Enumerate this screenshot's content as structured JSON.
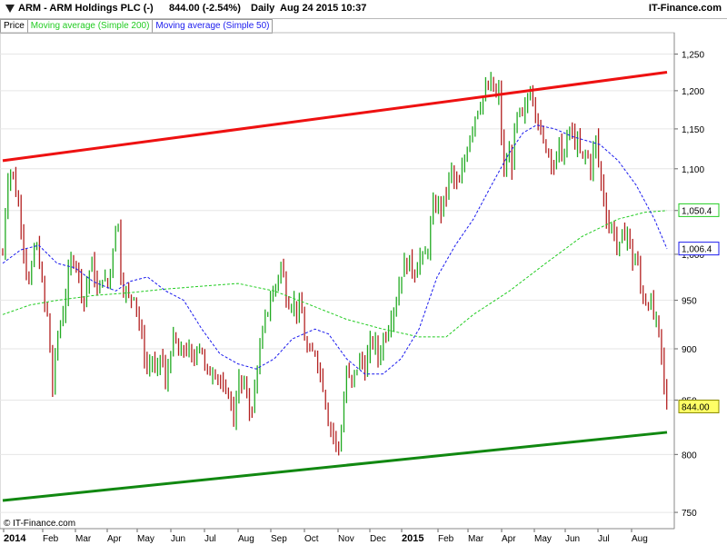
{
  "header": {
    "title": "ARM - ARM Holdings PLC (-)",
    "price_change": "844.00 (-2.54%)",
    "period": "Daily",
    "timestamp": "Aug 24 2015 10:37",
    "brand": "IT-Finance.com"
  },
  "legend": {
    "price": "Price",
    "ma200": "Moving average (Simple 200)",
    "ma50": "Moving average (Simple 50)"
  },
  "copyright": "© IT-Finance.com",
  "colors": {
    "up": "#22aa22",
    "down": "#b32020",
    "ma200": "#22cc22",
    "ma50": "#1a1aee",
    "resistance": "#ee1111",
    "support": "#118811",
    "last_price_bg": "#ffff66"
  },
  "chart_data": {
    "type": "candlestick",
    "y_scale": "log",
    "ylim": [
      738,
      1275
    ],
    "y_ticks": [
      "1,250",
      "1,200",
      "1,150",
      "1,100",
      "1,050",
      "1,000",
      "950",
      "900",
      "850",
      "800",
      "750"
    ],
    "y_tick_values": [
      1250,
      1200,
      1150,
      1100,
      1050,
      1000,
      950,
      900,
      850,
      800,
      750
    ],
    "x_labels": [
      "2014",
      "Feb",
      "Mar",
      "Apr",
      "May",
      "Jun",
      "Jul",
      "Aug",
      "Sep",
      "Oct",
      "Nov",
      "Dec",
      "2015",
      "Feb",
      "Mar",
      "Apr",
      "May",
      "Jun",
      "Jul",
      "Aug"
    ],
    "close_path": [
      [
        0,
        1000
      ],
      [
        5,
        1090
      ],
      [
        10,
        1100
      ],
      [
        15,
        1070
      ],
      [
        20,
        1040
      ],
      [
        25,
        990
      ],
      [
        30,
        960
      ],
      [
        35,
        1010
      ],
      [
        40,
        1000
      ],
      [
        45,
        950
      ],
      [
        50,
        930
      ],
      [
        52,
        900
      ],
      [
        55,
        860
      ],
      [
        60,
        910
      ],
      [
        65,
        930
      ],
      [
        70,
        960
      ],
      [
        75,
        990
      ],
      [
        80,
        1000
      ],
      [
        85,
        970
      ],
      [
        90,
        950
      ],
      [
        95,
        980
      ],
      [
        100,
        990
      ],
      [
        105,
        950
      ],
      [
        110,
        980
      ],
      [
        115,
        960
      ],
      [
        120,
        990
      ],
      [
        125,
        1040
      ],
      [
        128,
        1030
      ],
      [
        130,
        980
      ],
      [
        135,
        960
      ],
      [
        140,
        950
      ],
      [
        145,
        960
      ],
      [
        150,
        930
      ],
      [
        155,
        900
      ],
      [
        160,
        880
      ],
      [
        165,
        890
      ],
      [
        170,
        870
      ],
      [
        175,
        900
      ],
      [
        180,
        860
      ],
      [
        185,
        900
      ],
      [
        190,
        910
      ],
      [
        195,
        890
      ],
      [
        200,
        900
      ],
      [
        205,
        900
      ],
      [
        210,
        880
      ],
      [
        215,
        910
      ],
      [
        220,
        900
      ],
      [
        225,
        870
      ],
      [
        230,
        880
      ],
      [
        235,
        880
      ],
      [
        240,
        870
      ],
      [
        245,
        850
      ],
      [
        250,
        860
      ],
      [
        255,
        830
      ],
      [
        260,
        870
      ],
      [
        265,
        860
      ],
      [
        270,
        860
      ],
      [
        275,
        830
      ],
      [
        280,
        880
      ],
      [
        285,
        900
      ],
      [
        290,
        930
      ],
      [
        295,
        950
      ],
      [
        300,
        960
      ],
      [
        305,
        980
      ],
      [
        308,
        990
      ],
      [
        312,
        960
      ],
      [
        315,
        950
      ],
      [
        320,
        950
      ],
      [
        325,
        940
      ],
      [
        330,
        940
      ],
      [
        335,
        900
      ],
      [
        340,
        890
      ],
      [
        345,
        900
      ],
      [
        350,
        880
      ],
      [
        355,
        860
      ],
      [
        360,
        830
      ],
      [
        365,
        820
      ],
      [
        370,
        800
      ],
      [
        375,
        830
      ],
      [
        380,
        880
      ],
      [
        385,
        860
      ],
      [
        390,
        880
      ],
      [
        395,
        890
      ],
      [
        400,
        880
      ],
      [
        405,
        900
      ],
      [
        410,
        910
      ],
      [
        415,
        890
      ],
      [
        420,
        910
      ],
      [
        425,
        920
      ],
      [
        430,
        940
      ],
      [
        435,
        950
      ],
      [
        440,
        980
      ],
      [
        445,
        990
      ],
      [
        450,
        990
      ],
      [
        455,
        980
      ],
      [
        460,
        1000
      ],
      [
        465,
        990
      ],
      [
        470,
        1010
      ],
      [
        475,
        1050
      ],
      [
        480,
        1060
      ],
      [
        485,
        1050
      ],
      [
        490,
        1070
      ],
      [
        495,
        1100
      ],
      [
        500,
        1080
      ],
      [
        505,
        1080
      ],
      [
        510,
        1110
      ],
      [
        515,
        1140
      ],
      [
        520,
        1160
      ],
      [
        525,
        1180
      ],
      [
        530,
        1190
      ],
      [
        535,
        1200
      ],
      [
        540,
        1210
      ],
      [
        545,
        1190
      ],
      [
        548,
        1200
      ],
      [
        552,
        1120
      ],
      [
        555,
        1080
      ],
      [
        558,
        1130
      ],
      [
        562,
        1100
      ],
      [
        566,
        1150
      ],
      [
        570,
        1170
      ],
      [
        575,
        1160
      ],
      [
        580,
        1190
      ],
      [
        584,
        1210
      ],
      [
        588,
        1180
      ],
      [
        592,
        1160
      ],
      [
        596,
        1130
      ],
      [
        600,
        1130
      ],
      [
        605,
        1120
      ],
      [
        610,
        1100
      ],
      [
        615,
        1130
      ],
      [
        620,
        1110
      ],
      [
        625,
        1150
      ],
      [
        630,
        1140
      ],
      [
        635,
        1130
      ],
      [
        640,
        1110
      ],
      [
        645,
        1120
      ],
      [
        650,
        1100
      ],
      [
        655,
        1140
      ],
      [
        660,
        1090
      ],
      [
        665,
        1060
      ],
      [
        670,
        1030
      ],
      [
        675,
        1030
      ],
      [
        680,
        1000
      ],
      [
        685,
        1020
      ],
      [
        690,
        1030
      ],
      [
        695,
        990
      ],
      [
        700,
        1000
      ],
      [
        705,
        960
      ],
      [
        710,
        950
      ],
      [
        715,
        950
      ],
      [
        720,
        930
      ],
      [
        724,
        920
      ],
      [
        728,
        890
      ],
      [
        731,
        860
      ],
      [
        734,
        844
      ]
    ],
    "ma50": [
      [
        0,
        990
      ],
      [
        20,
        1005
      ],
      [
        40,
        1010
      ],
      [
        60,
        990
      ],
      [
        80,
        985
      ],
      [
        100,
        970
      ],
      [
        125,
        960
      ],
      [
        140,
        970
      ],
      [
        160,
        975
      ],
      [
        180,
        960
      ],
      [
        200,
        950
      ],
      [
        220,
        920
      ],
      [
        240,
        895
      ],
      [
        260,
        885
      ],
      [
        280,
        880
      ],
      [
        300,
        890
      ],
      [
        320,
        910
      ],
      [
        345,
        920
      ],
      [
        360,
        915
      ],
      [
        380,
        890
      ],
      [
        400,
        875
      ],
      [
        420,
        875
      ],
      [
        440,
        890
      ],
      [
        460,
        920
      ],
      [
        480,
        975
      ],
      [
        500,
        1010
      ],
      [
        520,
        1040
      ],
      [
        540,
        1080
      ],
      [
        560,
        1120
      ],
      [
        575,
        1145
      ],
      [
        590,
        1155
      ],
      [
        610,
        1150
      ],
      [
        630,
        1140
      ],
      [
        660,
        1130
      ],
      [
        680,
        1110
      ],
      [
        700,
        1080
      ],
      [
        720,
        1040
      ],
      [
        734,
        1006
      ]
    ],
    "ma200": [
      [
        0,
        935
      ],
      [
        30,
        945
      ],
      [
        60,
        950
      ],
      [
        100,
        955
      ],
      [
        140,
        958
      ],
      [
        180,
        962
      ],
      [
        220,
        965
      ],
      [
        260,
        968
      ],
      [
        300,
        960
      ],
      [
        340,
        945
      ],
      [
        380,
        930
      ],
      [
        420,
        920
      ],
      [
        460,
        912
      ],
      [
        490,
        912
      ],
      [
        520,
        935
      ],
      [
        560,
        960
      ],
      [
        600,
        990
      ],
      [
        640,
        1020
      ],
      [
        680,
        1040
      ],
      [
        710,
        1048
      ],
      [
        734,
        1050
      ]
    ],
    "ma200_last": "1,050.4",
    "ma50_last": "1,006.4",
    "last_price": "844.00",
    "resistance_line": [
      [
        0,
        1110
      ],
      [
        734,
        1225
      ]
    ],
    "support_line": [
      [
        0,
        760
      ],
      [
        734,
        820
      ]
    ],
    "grid": true
  }
}
